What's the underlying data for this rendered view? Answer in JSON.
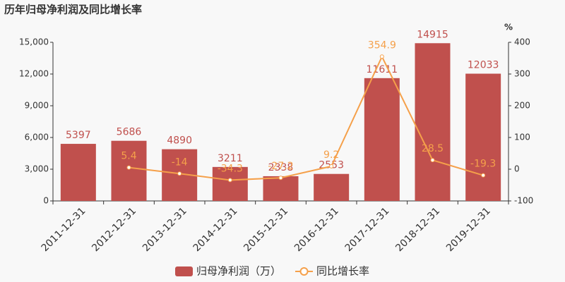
{
  "chart_data": {
    "type": "bar-line",
    "title": "历年归母净利润及同比增长率",
    "y2_unit": "%",
    "categories": [
      "2011-12-31",
      "2012-12-31",
      "2013-12-31",
      "2014-12-31",
      "2015-12-31",
      "2016-12-31",
      "2017-12-31",
      "2018-12-31",
      "2019-12-31"
    ],
    "series": [
      {
        "name": "归母净利润（万）",
        "type": "bar",
        "color": "#c0504d",
        "values": [
          5397,
          5686,
          4890,
          3211,
          2338,
          2553,
          11611,
          14915,
          12033
        ]
      },
      {
        "name": "同比增长率",
        "type": "line",
        "axis": "y2",
        "color": "#f5a04a",
        "values": [
          null,
          5.4,
          -14,
          -34.3,
          -27.2,
          9.2,
          354.9,
          28.5,
          -19.3
        ]
      }
    ],
    "ylim": [
      0,
      15000
    ],
    "yticks": [
      0,
      {
        "value": 3000,
        "label": "3,000"
      },
      {
        "value": 6000,
        "label": "6,000"
      },
      {
        "value": 9000,
        "label": "9,000"
      },
      {
        "value": 12000,
        "label": "12,000"
      },
      {
        "value": 15000,
        "label": "15,000"
      }
    ],
    "y2lim": [
      -100,
      400
    ],
    "y2ticks": [
      -100,
      0,
      100,
      200,
      300,
      400
    ],
    "legend": "bottom"
  }
}
